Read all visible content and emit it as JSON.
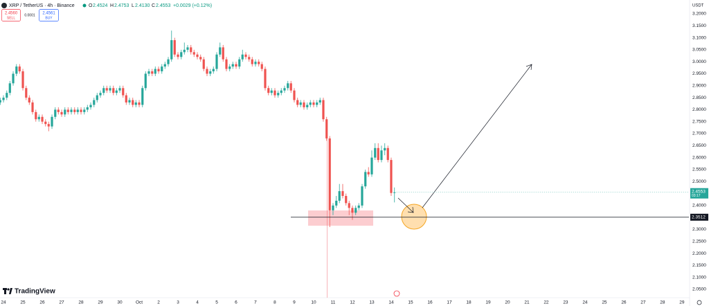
{
  "symbol_title": "XRP / TetherUS · 4h · Binance",
  "ohlc": [
    {
      "label": "O",
      "value": "2.4524"
    },
    {
      "label": "H",
      "value": "2.4753"
    },
    {
      "label": "L",
      "value": "2.4130"
    },
    {
      "label": "C",
      "value": "2.4553"
    }
  ],
  "change": "+0.0029 (+0.12%)",
  "sell": {
    "price": "2.4560",
    "label": "SELL"
  },
  "spread": "0.0001",
  "buy": {
    "price": "2.4561",
    "label": "BUY"
  },
  "currency": "USDT",
  "brand": "TradingView",
  "chart_data": {
    "type": "candlestick",
    "up_color": "#26a69a",
    "down_color": "#ef5350",
    "grid": false,
    "support_level": 2.3512,
    "countdown": "03:17",
    "xlim": [
      -0.18,
      35.36
    ],
    "ylim": [
      2.0154,
      3.2576
    ],
    "xticks": [
      {
        "value": 0,
        "label": "24"
      },
      {
        "value": 1,
        "label": "25"
      },
      {
        "value": 2,
        "label": "26"
      },
      {
        "value": 3,
        "label": "27"
      },
      {
        "value": 4,
        "label": "28"
      },
      {
        "value": 5,
        "label": "29"
      },
      {
        "value": 6,
        "label": "30"
      },
      {
        "value": 7,
        "label": "Oct"
      },
      {
        "value": 8,
        "label": "2"
      },
      {
        "value": 9,
        "label": "3"
      },
      {
        "value": 10,
        "label": "4"
      },
      {
        "value": 11,
        "label": "5"
      },
      {
        "value": 12,
        "label": "6"
      },
      {
        "value": 13,
        "label": "7"
      },
      {
        "value": 14,
        "label": "8"
      },
      {
        "value": 15,
        "label": "9"
      },
      {
        "value": 16,
        "label": "10"
      },
      {
        "value": 17,
        "label": "11"
      },
      {
        "value": 18,
        "label": "12"
      },
      {
        "value": 19,
        "label": "13"
      },
      {
        "value": 20,
        "label": "14"
      },
      {
        "value": 21,
        "label": "15"
      },
      {
        "value": 22,
        "label": "16"
      },
      {
        "value": 23,
        "label": "17"
      },
      {
        "value": 24,
        "label": "18"
      },
      {
        "value": 25,
        "label": "19"
      },
      {
        "value": 26,
        "label": "20"
      },
      {
        "value": 27,
        "label": "21"
      },
      {
        "value": 28,
        "label": "22"
      },
      {
        "value": 29,
        "label": "23"
      },
      {
        "value": 30,
        "label": "24"
      },
      {
        "value": 31,
        "label": "25"
      },
      {
        "value": 32,
        "label": "26"
      },
      {
        "value": 33,
        "label": "27"
      },
      {
        "value": 34,
        "label": "28"
      },
      {
        "value": 35,
        "label": "29"
      }
    ],
    "yticks": [
      {
        "value": 3.2,
        "label": "3.2000"
      },
      {
        "value": 3.15,
        "label": "3.1500"
      },
      {
        "value": 3.1,
        "label": "3.1000"
      },
      {
        "value": 3.05,
        "label": "3.0500"
      },
      {
        "value": 3.0,
        "label": "3.0000"
      },
      {
        "value": 2.95,
        "label": "2.9500"
      },
      {
        "value": 2.9,
        "label": "2.9000"
      },
      {
        "value": 2.85,
        "label": "2.8500"
      },
      {
        "value": 2.8,
        "label": "2.8000"
      },
      {
        "value": 2.75,
        "label": "2.7500"
      },
      {
        "value": 2.7,
        "label": "2.7000"
      },
      {
        "value": 2.65,
        "label": "2.6500"
      },
      {
        "value": 2.6,
        "label": "2.6000"
      },
      {
        "value": 2.55,
        "label": "2.5500"
      },
      {
        "value": 2.5,
        "label": "2.5000"
      },
      {
        "value": 2.4,
        "label": "2.4000"
      },
      {
        "value": 2.3,
        "label": "2.3000"
      },
      {
        "value": 2.25,
        "label": "2.2500"
      },
      {
        "value": 2.2,
        "label": "2.2000"
      },
      {
        "value": 2.15,
        "label": "2.1500"
      },
      {
        "value": 2.1,
        "label": "2.1000"
      },
      {
        "value": 2.05,
        "label": "2.0500"
      }
    ],
    "candles": [
      [
        -0.17,
        2.83,
        2.85,
        2.82,
        2.84
      ],
      [
        0,
        2.84,
        2.86,
        2.83,
        2.85
      ],
      [
        0.17,
        2.85,
        2.88,
        2.84,
        2.87
      ],
      [
        0.33,
        2.87,
        2.92,
        2.86,
        2.91
      ],
      [
        0.5,
        2.91,
        2.96,
        2.9,
        2.95
      ],
      [
        0.67,
        2.95,
        2.99,
        2.94,
        2.98
      ],
      [
        0.83,
        2.98,
        2.99,
        2.95,
        2.96
      ],
      [
        1,
        2.96,
        2.97,
        2.88,
        2.89
      ],
      [
        1.17,
        2.89,
        2.9,
        2.84,
        2.85
      ],
      [
        1.33,
        2.85,
        2.86,
        2.82,
        2.83
      ],
      [
        1.5,
        2.83,
        2.84,
        2.78,
        2.79
      ],
      [
        1.67,
        2.79,
        2.8,
        2.75,
        2.76
      ],
      [
        1.83,
        2.76,
        2.78,
        2.75,
        2.77
      ],
      [
        2,
        2.77,
        2.78,
        2.74,
        2.75
      ],
      [
        2.17,
        2.75,
        2.76,
        2.73,
        2.74
      ],
      [
        2.33,
        2.74,
        2.75,
        2.71,
        2.73
      ],
      [
        2.5,
        2.73,
        2.78,
        2.72,
        2.77
      ],
      [
        2.67,
        2.77,
        2.81,
        2.76,
        2.8
      ],
      [
        2.83,
        2.8,
        2.81,
        2.78,
        2.79
      ],
      [
        3,
        2.79,
        2.8,
        2.77,
        2.78
      ],
      [
        3.17,
        2.78,
        2.81,
        2.77,
        2.8
      ],
      [
        3.33,
        2.8,
        2.81,
        2.78,
        2.79
      ],
      [
        3.5,
        2.79,
        2.81,
        2.78,
        2.8
      ],
      [
        3.67,
        2.8,
        2.81,
        2.78,
        2.79
      ],
      [
        3.83,
        2.79,
        2.81,
        2.78,
        2.8
      ],
      [
        4,
        2.8,
        2.81,
        2.78,
        2.79
      ],
      [
        4.17,
        2.79,
        2.81,
        2.78,
        2.8
      ],
      [
        4.33,
        2.8,
        2.82,
        2.79,
        2.81
      ],
      [
        4.5,
        2.81,
        2.83,
        2.8,
        2.82
      ],
      [
        4.67,
        2.82,
        2.85,
        2.81,
        2.84
      ],
      [
        4.83,
        2.84,
        2.87,
        2.83,
        2.86
      ],
      [
        5,
        2.86,
        2.88,
        2.85,
        2.87
      ],
      [
        5.17,
        2.87,
        2.9,
        2.86,
        2.89
      ],
      [
        5.33,
        2.89,
        2.9,
        2.87,
        2.88
      ],
      [
        5.5,
        2.88,
        2.9,
        2.87,
        2.89
      ],
      [
        5.67,
        2.89,
        2.9,
        2.86,
        2.87
      ],
      [
        5.83,
        2.87,
        2.89,
        2.86,
        2.88
      ],
      [
        6,
        2.88,
        2.9,
        2.87,
        2.89
      ],
      [
        6.17,
        2.89,
        2.9,
        2.85,
        2.86
      ],
      [
        6.33,
        2.86,
        2.87,
        2.82,
        2.83
      ],
      [
        6.5,
        2.83,
        2.85,
        2.82,
        2.84
      ],
      [
        6.67,
        2.84,
        2.85,
        2.81,
        2.82
      ],
      [
        6.83,
        2.82,
        2.84,
        2.81,
        2.83
      ],
      [
        7,
        2.83,
        2.84,
        2.81,
        2.82
      ],
      [
        7.17,
        2.82,
        2.9,
        2.81,
        2.89
      ],
      [
        7.33,
        2.89,
        2.96,
        2.88,
        2.95
      ],
      [
        7.5,
        2.95,
        2.97,
        2.94,
        2.96
      ],
      [
        7.67,
        2.96,
        2.97,
        2.94,
        2.95
      ],
      [
        7.83,
        2.95,
        2.98,
        2.94,
        2.97
      ],
      [
        8,
        2.97,
        2.98,
        2.95,
        2.96
      ],
      [
        8.17,
        2.96,
        2.99,
        2.95,
        2.98
      ],
      [
        8.33,
        2.98,
        3.0,
        2.97,
        2.99
      ],
      [
        8.5,
        2.99,
        3.02,
        2.98,
        3.01
      ],
      [
        8.67,
        3.01,
        3.13,
        3.0,
        3.09
      ],
      [
        8.83,
        3.09,
        3.1,
        3.02,
        3.03
      ],
      [
        9,
        3.03,
        3.04,
        3.01,
        3.02
      ],
      [
        9.17,
        3.02,
        3.05,
        3.01,
        3.04
      ],
      [
        9.33,
        3.04,
        3.08,
        3.03,
        3.05
      ],
      [
        9.5,
        3.05,
        3.07,
        3.04,
        3.06
      ],
      [
        9.67,
        3.06,
        3.07,
        3.03,
        3.04
      ],
      [
        9.83,
        3.04,
        3.05,
        3.02,
        3.03
      ],
      [
        10,
        3.03,
        3.04,
        3.01,
        3.02
      ],
      [
        10.17,
        3.02,
        3.03,
        3.0,
        3.01
      ],
      [
        10.33,
        3.01,
        3.02,
        2.96,
        2.97
      ],
      [
        10.5,
        2.97,
        2.98,
        2.94,
        2.95
      ],
      [
        10.67,
        2.95,
        2.97,
        2.94,
        2.96
      ],
      [
        10.83,
        2.96,
        2.98,
        2.95,
        2.97
      ],
      [
        11,
        2.97,
        3.04,
        2.96,
        3.03
      ],
      [
        11.17,
        3.03,
        3.08,
        3.02,
        3.06
      ],
      [
        11.33,
        3.06,
        3.07,
        3.0,
        3.01
      ],
      [
        11.5,
        3.01,
        3.02,
        2.96,
        2.97
      ],
      [
        11.67,
        2.97,
        2.99,
        2.96,
        2.98
      ],
      [
        11.83,
        2.98,
        3.0,
        2.97,
        2.99
      ],
      [
        12,
        2.99,
        3.0,
        2.97,
        2.98
      ],
      [
        12.17,
        2.98,
        3.02,
        2.97,
        3.01
      ],
      [
        12.33,
        3.01,
        3.05,
        3.0,
        3.03
      ],
      [
        12.5,
        3.03,
        3.04,
        3.01,
        3.02
      ],
      [
        12.67,
        3.02,
        3.03,
        3.0,
        3.01
      ],
      [
        12.83,
        3.01,
        3.02,
        2.98,
        2.99
      ],
      [
        13,
        2.99,
        3.01,
        2.98,
        3.0
      ],
      [
        13.17,
        3.0,
        3.01,
        2.98,
        2.99
      ],
      [
        13.33,
        2.99,
        3.0,
        2.96,
        2.97
      ],
      [
        13.5,
        2.97,
        2.98,
        2.88,
        2.89
      ],
      [
        13.67,
        2.89,
        2.9,
        2.86,
        2.87
      ],
      [
        13.83,
        2.87,
        2.89,
        2.86,
        2.88
      ],
      [
        14,
        2.88,
        2.89,
        2.85,
        2.86
      ],
      [
        14.17,
        2.86,
        2.88,
        2.85,
        2.87
      ],
      [
        14.33,
        2.87,
        2.89,
        2.86,
        2.88
      ],
      [
        14.5,
        2.88,
        2.9,
        2.87,
        2.89
      ],
      [
        14.67,
        2.89,
        2.92,
        2.88,
        2.91
      ],
      [
        14.83,
        2.91,
        2.92,
        2.87,
        2.88
      ],
      [
        15,
        2.88,
        2.89,
        2.83,
        2.84
      ],
      [
        15.17,
        2.84,
        2.85,
        2.81,
        2.82
      ],
      [
        15.33,
        2.82,
        2.84,
        2.81,
        2.83
      ],
      [
        15.5,
        2.83,
        2.84,
        2.8,
        2.81
      ],
      [
        15.67,
        2.81,
        2.83,
        2.8,
        2.82
      ],
      [
        15.83,
        2.82,
        2.84,
        2.81,
        2.83
      ],
      [
        16,
        2.83,
        2.84,
        2.81,
        2.82
      ],
      [
        16.17,
        2.82,
        2.84,
        2.81,
        2.83
      ],
      [
        16.33,
        2.83,
        2.85,
        2.82,
        2.84
      ],
      [
        16.5,
        2.84,
        2.85,
        2.75,
        2.76
      ],
      [
        16.67,
        2.76,
        2.77,
        2.67,
        2.68
      ],
      [
        16.83,
        2.68,
        2.69,
        2.31,
        2.38
      ],
      [
        17,
        2.38,
        2.41,
        2.36,
        2.4
      ],
      [
        17.17,
        2.4,
        2.44,
        2.39,
        2.42
      ],
      [
        17.33,
        2.42,
        2.49,
        2.41,
        2.46
      ],
      [
        17.5,
        2.46,
        2.49,
        2.43,
        2.44
      ],
      [
        17.67,
        2.44,
        2.45,
        2.4,
        2.41
      ],
      [
        17.83,
        2.41,
        2.42,
        2.36,
        2.39
      ],
      [
        18,
        2.39,
        2.4,
        2.34,
        2.37
      ],
      [
        18.17,
        2.37,
        2.4,
        2.36,
        2.39
      ],
      [
        18.33,
        2.39,
        2.41,
        2.38,
        2.4
      ],
      [
        18.5,
        2.4,
        2.49,
        2.39,
        2.48
      ],
      [
        18.67,
        2.48,
        2.55,
        2.47,
        2.54
      ],
      [
        18.83,
        2.54,
        2.56,
        2.52,
        2.53
      ],
      [
        19,
        2.53,
        2.63,
        2.52,
        2.6
      ],
      [
        19.17,
        2.6,
        2.66,
        2.59,
        2.64
      ],
      [
        19.33,
        2.64,
        2.66,
        2.58,
        2.59
      ],
      [
        19.5,
        2.59,
        2.65,
        2.58,
        2.63
      ],
      [
        19.67,
        2.63,
        2.66,
        2.61,
        2.64
      ],
      [
        19.83,
        2.64,
        2.65,
        2.58,
        2.59
      ],
      [
        20,
        2.59,
        2.6,
        2.44,
        2.4524
      ],
      [
        20.17,
        2.4524,
        2.4753,
        2.413,
        2.4553
      ]
    ]
  }
}
